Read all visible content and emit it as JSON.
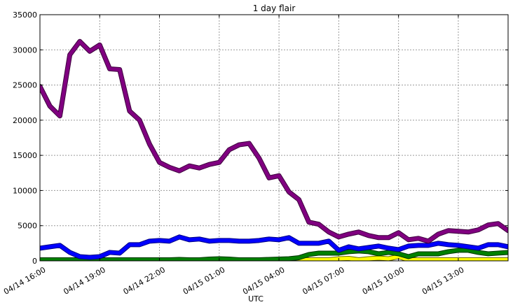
{
  "chart_data": {
    "type": "line",
    "title": "1 day flair",
    "xlabel": "UTC",
    "ylabel": "",
    "ylim": [
      0,
      35000
    ],
    "yticks": [
      0,
      5000,
      10000,
      15000,
      20000,
      25000,
      30000,
      35000
    ],
    "xlim": [
      0,
      23.5
    ],
    "xticks": [
      {
        "value": 0,
        "label": "04/14 16:00"
      },
      {
        "value": 3,
        "label": "04/14 19:00"
      },
      {
        "value": 6,
        "label": "04/14 22:00"
      },
      {
        "value": 9,
        "label": "04/15 01:00"
      },
      {
        "value": 12,
        "label": "04/15 04:00"
      },
      {
        "value": 15,
        "label": "04/15 07:00"
      },
      {
        "value": 18,
        "label": "04/15 10:00"
      },
      {
        "value": 21,
        "label": "04/15 13:00"
      }
    ],
    "grid": true,
    "x": [
      0,
      0.5,
      1,
      1.5,
      2,
      2.5,
      3,
      3.5,
      4,
      4.5,
      5,
      5.5,
      6,
      6.5,
      7,
      7.5,
      8,
      8.5,
      9,
      9.5,
      10,
      10.5,
      11,
      11.5,
      12,
      12.5,
      13,
      13.5,
      14,
      14.5,
      15,
      15.5,
      16,
      16.5,
      17,
      17.5,
      18,
      18.5,
      19,
      19.5,
      20,
      20.5,
      21,
      21.5,
      22,
      22.5,
      23,
      23.5
    ],
    "series": [
      {
        "color": "#ffff00",
        "edge": "#6b6b00",
        "values": [
          150,
          150,
          150,
          150,
          150,
          150,
          150,
          150,
          150,
          150,
          150,
          150,
          150,
          150,
          150,
          150,
          150,
          150,
          150,
          150,
          150,
          150,
          150,
          150,
          150,
          150,
          150,
          150,
          150,
          150,
          300,
          350,
          150,
          300,
          400,
          300,
          600,
          150,
          150,
          150,
          150,
          150,
          150,
          150,
          150,
          150,
          150,
          150
        ]
      },
      {
        "color": "#008000",
        "edge": "#003300",
        "values": [
          150,
          150,
          150,
          150,
          150,
          150,
          150,
          150,
          150,
          150,
          150,
          150,
          150,
          150,
          200,
          150,
          150,
          250,
          300,
          250,
          150,
          150,
          150,
          200,
          250,
          300,
          450,
          900,
          1100,
          1100,
          1100,
          1300,
          1400,
          1300,
          1000,
          1200,
          1000,
          600,
          1000,
          1000,
          1000,
          1300,
          1500,
          1500,
          1200,
          1000,
          1100,
          1200
        ]
      },
      {
        "color": "#0000ff",
        "edge": "#000080",
        "values": [
          1800,
          2000,
          2200,
          1200,
          600,
          500,
          600,
          1200,
          1100,
          2300,
          2300,
          2800,
          2900,
          2800,
          3400,
          3000,
          3100,
          2800,
          2900,
          2900,
          2800,
          2800,
          2900,
          3100,
          3000,
          3300,
          2500,
          2500,
          2500,
          2800,
          1500,
          2000,
          1700,
          1900,
          2100,
          1800,
          1600,
          2100,
          2200,
          2200,
          2500,
          2300,
          2200,
          2000,
          1800,
          2300,
          2300,
          2000
        ]
      },
      {
        "color": "#800080",
        "edge": "#3d003d",
        "values": [
          24800,
          22000,
          20600,
          29300,
          31200,
          29800,
          30700,
          27300,
          27200,
          21300,
          20000,
          16600,
          14000,
          13300,
          12800,
          13500,
          13200,
          13700,
          14000,
          15800,
          16500,
          16700,
          14600,
          11800,
          12100,
          9800,
          8700,
          5500,
          5200,
          4100,
          3400,
          3800,
          4100,
          3600,
          3300,
          3300,
          4000,
          3000,
          3200,
          2800,
          3800,
          4300,
          4200,
          4100,
          4400,
          5100,
          5300,
          4300
        ]
      }
    ]
  }
}
